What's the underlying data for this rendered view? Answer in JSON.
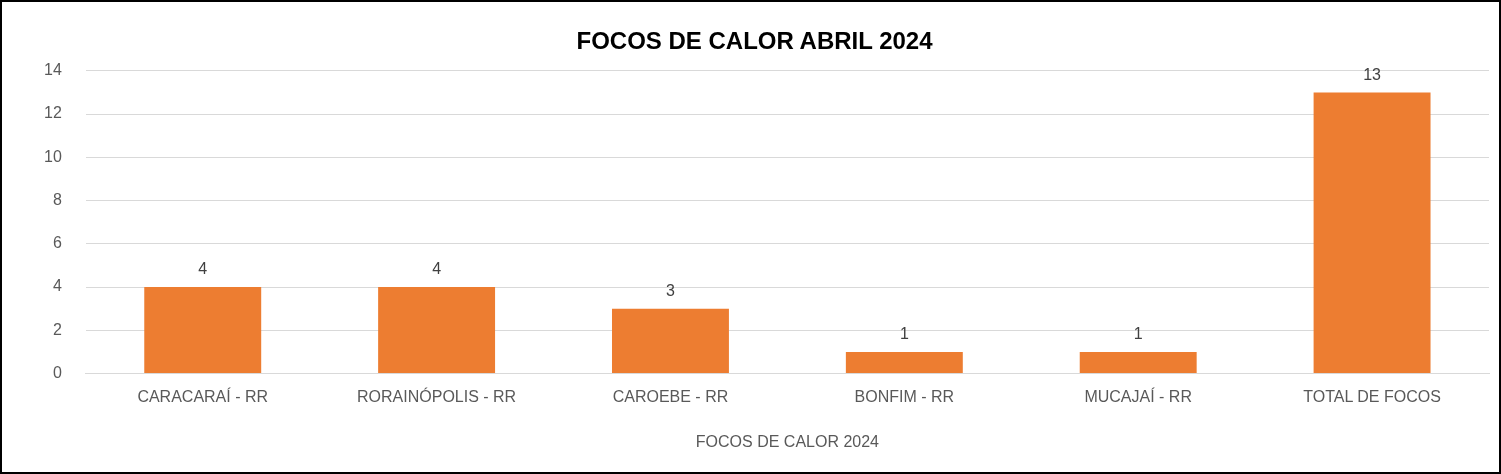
{
  "chart_data": {
    "type": "bar",
    "title": "FOCOS DE CALOR ABRIL 2024",
    "xlabel": "FOCOS DE CALOR 2024",
    "categories": [
      "CARACARAÍ - RR",
      "RORAINÓPOLIS - RR",
      "CAROEBE - RR",
      "BONFIM - RR",
      "MUCAJAÍ - RR",
      "TOTAL DE FOCOS"
    ],
    "values": [
      4,
      4,
      3,
      1,
      1,
      13
    ],
    "color": "#ed7d31",
    "ylim": [
      0,
      14
    ],
    "yticks": [
      0,
      2,
      4,
      6,
      8,
      10,
      12,
      14
    ],
    "grid": "y",
    "legend": false,
    "data_labels": true
  }
}
